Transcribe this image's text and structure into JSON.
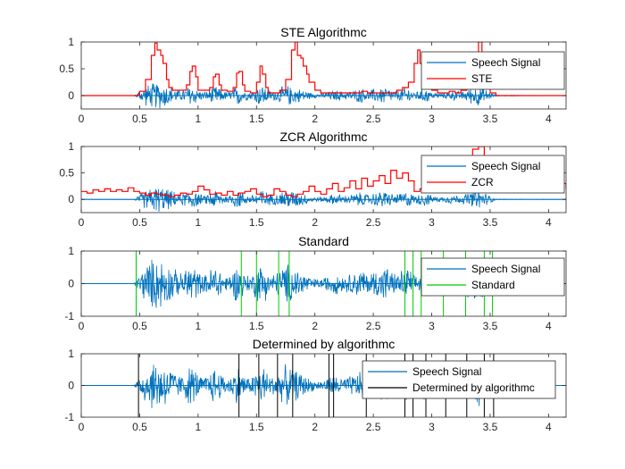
{
  "chart_data": [
    {
      "type": "line",
      "title": "STE Algorithmc",
      "xlim": [
        0,
        4.15
      ],
      "ylim": [
        -0.25,
        1.0
      ],
      "xticks": [
        0,
        0.5,
        1,
        1.5,
        2,
        2.5,
        3,
        3.5,
        4
      ],
      "yticks": [
        0,
        0.5,
        1
      ],
      "legend_position": "top-right",
      "series": [
        {
          "name": "Speech Signal",
          "color": "#0072BD",
          "kind": "speech"
        },
        {
          "name": "STE",
          "color": "#FF0000",
          "kind": "step",
          "x": [
            0,
            0.45,
            0.5,
            0.55,
            0.6,
            0.63,
            0.65,
            0.68,
            0.7,
            0.73,
            0.75,
            0.78,
            0.8,
            0.85,
            0.9,
            0.93,
            0.95,
            0.98,
            1.0,
            1.05,
            1.1,
            1.13,
            1.15,
            1.18,
            1.2,
            1.25,
            1.3,
            1.33,
            1.35,
            1.38,
            1.4,
            1.45,
            1.5,
            1.53,
            1.55,
            1.58,
            1.6,
            1.65,
            1.7,
            1.75,
            1.8,
            1.83,
            1.85,
            1.88,
            1.9,
            1.93,
            1.95,
            2.0,
            2.05,
            2.1,
            2.15,
            2.2,
            2.25,
            2.3,
            2.35,
            2.4,
            2.45,
            2.5,
            2.55,
            2.6,
            2.65,
            2.7,
            2.75,
            2.8,
            2.85,
            2.88,
            2.9,
            2.93,
            2.95,
            3.0,
            3.05,
            3.1,
            3.15,
            3.2,
            3.25,
            3.3,
            3.35,
            3.38,
            3.4,
            3.43,
            3.45,
            3.5,
            3.55,
            4.15
          ],
          "y": [
            0,
            0,
            0.08,
            0.3,
            0.75,
            0.98,
            0.85,
            0.75,
            0.6,
            0.3,
            0.15,
            0.1,
            0.1,
            0.1,
            0.2,
            0.45,
            0.55,
            0.35,
            0.1,
            0.1,
            0.15,
            0.35,
            0.4,
            0.2,
            0.1,
            0.08,
            0.15,
            0.42,
            0.45,
            0.2,
            0.08,
            0.05,
            0.25,
            0.55,
            0.4,
            0.15,
            0.05,
            0.05,
            0.1,
            0.3,
            0.85,
            1.0,
            0.75,
            0.7,
            0.55,
            0.4,
            0.25,
            0.1,
            0.05,
            0.05,
            0.05,
            0.05,
            0.05,
            0.05,
            0.05,
            0.08,
            0.05,
            0.05,
            0.05,
            0.05,
            0.05,
            0.1,
            0.15,
            0.25,
            0.6,
            0.85,
            0.6,
            0.4,
            0.2,
            0.1,
            0.05,
            0.05,
            0.08,
            0.05,
            0.1,
            0.15,
            0.35,
            0.6,
            1.0,
            0.45,
            0.2,
            0.05,
            0,
            0
          ]
        }
      ]
    },
    {
      "type": "line",
      "title": "ZCR Algorithmc",
      "xlim": [
        0,
        4.15
      ],
      "ylim": [
        -0.25,
        1.0
      ],
      "xticks": [
        0,
        0.5,
        1,
        1.5,
        2,
        2.5,
        3,
        3.5,
        4
      ],
      "yticks": [
        0,
        0.5,
        1
      ],
      "legend_position": "top-right",
      "series": [
        {
          "name": "Speech Signal",
          "color": "#0072BD",
          "kind": "speech"
        },
        {
          "name": "ZCR",
          "color": "#FF0000",
          "kind": "step",
          "x": [
            0,
            0.05,
            0.1,
            0.15,
            0.2,
            0.25,
            0.3,
            0.35,
            0.4,
            0.45,
            0.5,
            0.55,
            0.6,
            0.65,
            0.7,
            0.75,
            0.8,
            0.85,
            0.9,
            0.95,
            1.0,
            1.05,
            1.1,
            1.15,
            1.2,
            1.25,
            1.3,
            1.35,
            1.4,
            1.45,
            1.5,
            1.55,
            1.6,
            1.65,
            1.7,
            1.75,
            1.8,
            1.85,
            1.9,
            1.95,
            2.0,
            2.05,
            2.1,
            2.15,
            2.2,
            2.25,
            2.3,
            2.35,
            2.4,
            2.45,
            2.5,
            2.55,
            2.6,
            2.65,
            2.7,
            2.75,
            2.8,
            2.85,
            2.9,
            2.95,
            3.0,
            3.05,
            3.1,
            3.15,
            3.2,
            3.25,
            3.3,
            3.35,
            3.4,
            3.45,
            3.5,
            3.55,
            3.6,
            3.65,
            3.7,
            3.75,
            3.8,
            3.85,
            3.9,
            3.95,
            4.0,
            4.05,
            4.1,
            4.15
          ],
          "y": [
            0.15,
            0.12,
            0.18,
            0.15,
            0.2,
            0.15,
            0.18,
            0.15,
            0.22,
            0.15,
            0.12,
            0.08,
            0.12,
            0.1,
            0.08,
            0.05,
            0.08,
            0.12,
            0.1,
            0.15,
            0.25,
            0.18,
            0.1,
            0.12,
            0.08,
            0.15,
            0.08,
            0.12,
            0.15,
            0.2,
            0.1,
            0.05,
            0.08,
            0.2,
            0.15,
            0.08,
            0.05,
            0.1,
            0.15,
            0.25,
            0.15,
            0.1,
            0.2,
            0.3,
            0.15,
            0.22,
            0.35,
            0.2,
            0.4,
            0.25,
            0.35,
            0.45,
            0.3,
            0.55,
            0.4,
            0.5,
            0.35,
            0.15,
            0.2,
            0.55,
            0.65,
            0.6,
            0.2,
            0.25,
            0.5,
            0.75,
            0.55,
            0.95,
            1.0,
            0.6,
            0.4,
            0.5,
            0.3,
            0.6,
            0.3,
            0.5,
            0.4,
            0.25,
            0.6,
            0.3,
            0.15,
            0.45,
            0.3,
            0.2
          ]
        }
      ]
    },
    {
      "type": "line",
      "title": "Standard",
      "xlim": [
        0,
        4.15
      ],
      "ylim": [
        -1,
        1
      ],
      "xticks": [
        0,
        0.5,
        1,
        1.5,
        2,
        2.5,
        3,
        3.5,
        4
      ],
      "yticks": [
        -1,
        0,
        1
      ],
      "legend_position": "top-right",
      "series": [
        {
          "name": "Speech Signal",
          "color": "#0072BD",
          "kind": "speech"
        },
        {
          "name": "Standard",
          "color": "#00CC00",
          "kind": "vlines",
          "x": [
            0.47,
            1.37,
            1.5,
            1.69,
            1.78,
            2.77,
            2.84,
            2.91,
            3.1,
            3.29,
            3.45,
            3.52
          ]
        }
      ]
    },
    {
      "type": "line",
      "title": "Determined by algorithmc",
      "xlim": [
        0,
        4.15
      ],
      "ylim": [
        -1,
        1
      ],
      "xticks": [
        0,
        0.5,
        1,
        1.5,
        2,
        2.5,
        3,
        3.5,
        4
      ],
      "yticks": [
        -1,
        0,
        1
      ],
      "legend_position": "top-right",
      "series": [
        {
          "name": "Speech Signal",
          "color": "#0072BD",
          "kind": "speech"
        },
        {
          "name": "Determined by algorithmc",
          "color": "#000000",
          "kind": "vlines",
          "x": [
            0.49,
            1.35,
            1.52,
            1.68,
            1.81,
            2.12,
            2.16,
            2.44,
            2.77,
            2.84,
            2.95,
            3.12,
            3.3,
            3.45,
            3.53
          ]
        }
      ]
    }
  ],
  "speech_envelope": {
    "x": [
      0,
      0.45,
      0.5,
      0.55,
      0.6,
      0.65,
      0.7,
      0.75,
      0.8,
      0.85,
      0.9,
      0.95,
      1.0,
      1.05,
      1.1,
      1.15,
      1.2,
      1.25,
      1.3,
      1.35,
      1.4,
      1.45,
      1.5,
      1.55,
      1.6,
      1.65,
      1.7,
      1.75,
      1.8,
      1.85,
      1.9,
      1.95,
      2.0,
      2.05,
      2.1,
      2.15,
      2.2,
      2.25,
      2.3,
      2.35,
      2.4,
      2.45,
      2.5,
      2.55,
      2.6,
      2.65,
      2.7,
      2.75,
      2.8,
      2.85,
      2.9,
      2.95,
      3.0,
      3.05,
      3.1,
      3.15,
      3.2,
      3.25,
      3.3,
      3.35,
      3.4,
      3.45,
      3.5,
      3.55,
      4.15
    ],
    "amp": [
      0,
      0,
      0.2,
      0.4,
      0.5,
      0.55,
      0.5,
      0.4,
      0.3,
      0.2,
      0.35,
      0.45,
      0.25,
      0.15,
      0.3,
      0.42,
      0.25,
      0.15,
      0.28,
      0.42,
      0.2,
      0.15,
      0.35,
      0.45,
      0.25,
      0.2,
      0.3,
      0.42,
      0.38,
      0.3,
      0.25,
      0.15,
      0.1,
      0.1,
      0.15,
      0.2,
      0.22,
      0.15,
      0.2,
      0.25,
      0.3,
      0.2,
      0.28,
      0.3,
      0.4,
      0.25,
      0.2,
      0.3,
      0.35,
      0.15,
      0.25,
      0.3,
      0.15,
      0.12,
      0.1,
      0.18,
      0.2,
      0.15,
      0.25,
      0.35,
      0.45,
      0.3,
      0.15,
      0.02,
      0
    ]
  }
}
